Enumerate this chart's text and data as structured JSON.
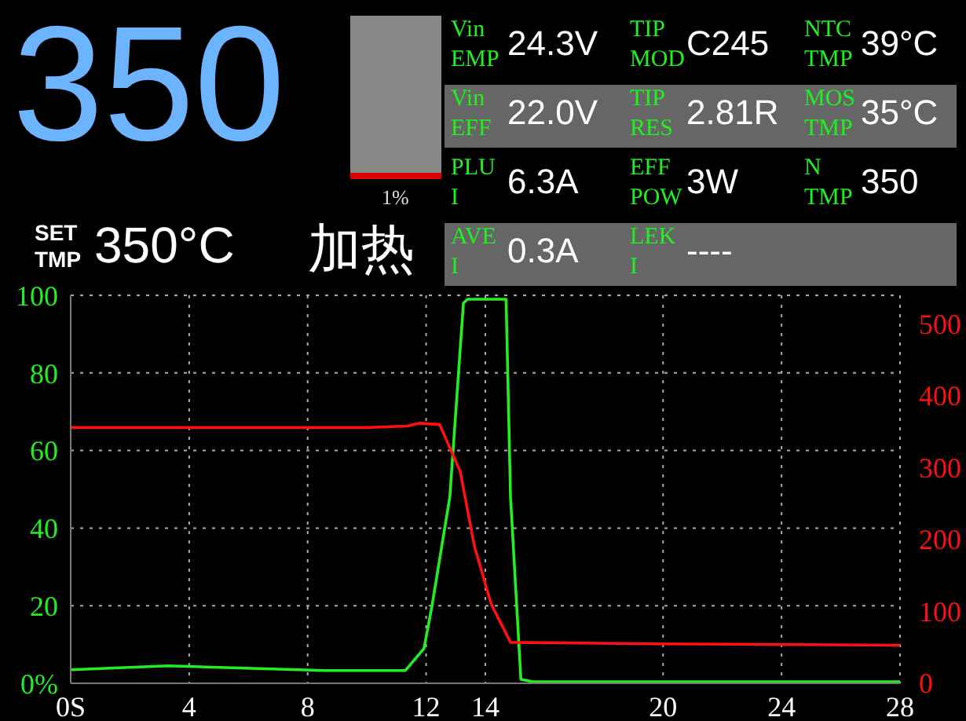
{
  "chart_data": {
    "type": "line",
    "annotations": [
      "350",
      "1%",
      "SET TMP",
      "350°C",
      "加热",
      "Vin EMP",
      "24.3V",
      "TIP MOD",
      "C245",
      "NTC TMP",
      "39°C",
      "Vin EFF",
      "22.0V",
      "TIP RES",
      "2.81R",
      "MOS TMP",
      "35°C",
      "PLU I",
      "6.3A",
      "EFF POW",
      "3W",
      "N TMP",
      "350",
      "AVE I",
      "0.3A",
      "LEK I",
      "----"
    ],
    "xlim": [
      0,
      28
    ],
    "xticks": [
      {
        "value": 0,
        "label": "0S"
      },
      4,
      8,
      12,
      14,
      20,
      24,
      28
    ],
    "ylim": [
      0,
      100
    ],
    "yticks": [
      {
        "value": 0,
        "label": "0%"
      },
      20,
      40,
      60,
      80,
      100
    ],
    "y2lim": [
      0,
      540
    ],
    "y2ticks": [
      0,
      100,
      200,
      300,
      400,
      500
    ],
    "grid": true,
    "legend": false,
    "marker": "none",
    "line_style": "solid",
    "series": [
      {
        "color": "#22ee22",
        "x": [
          0,
          3.29,
          8.6,
          11.3,
          11.93,
          12.2,
          12.8,
          13.26,
          13.4,
          14.7,
          14.85,
          15.2,
          15.6,
          28
        ],
        "values": [
          3.5,
          4.5,
          3.3,
          3.3,
          9,
          20,
          48,
          98,
          99,
          99,
          48,
          1,
          0.4,
          0.4
        ]
      },
      {
        "color": "#ff1010",
        "axis": "y2",
        "x": [
          0,
          10.1,
          11.35,
          11.8,
          12.46,
          13.15,
          13.63,
          14.2,
          14.85,
          19.8,
          28
        ],
        "values": [
          356,
          356,
          358,
          362,
          360,
          295,
          191,
          110,
          57,
          55,
          53
        ]
      }
    ]
  }
}
